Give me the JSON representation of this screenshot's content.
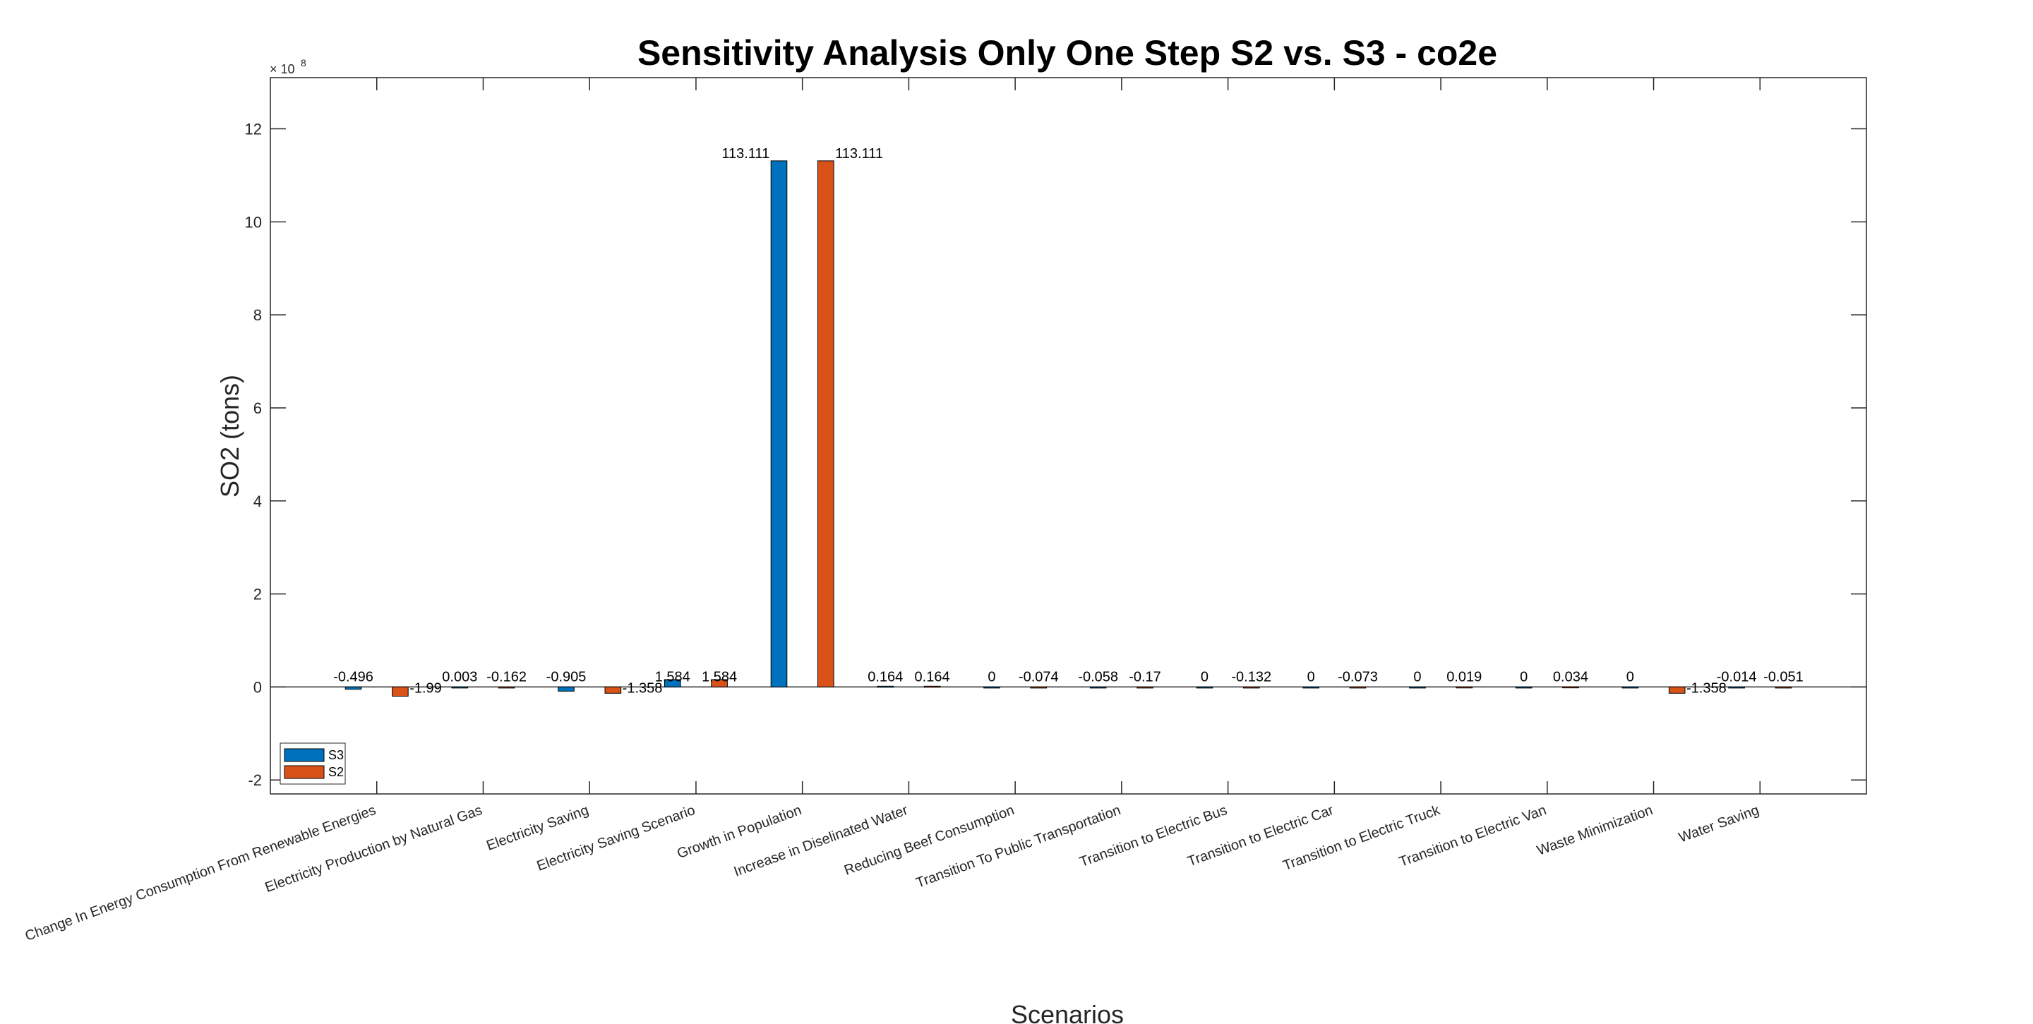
{
  "chart_data": {
    "type": "bar",
    "title": "Sensitivity Analysis Only One Step S2 vs. S3 - co2e",
    "xlabel": "Scenarios",
    "ylabel": "SO2 (tons)",
    "y_exponent_base": "× 10",
    "y_exponent_power": "8",
    "ylim": [
      -2.3,
      13.1
    ],
    "yticks": [
      -2,
      0,
      2,
      4,
      6,
      8,
      10,
      12
    ],
    "legend_position": "bottom-left",
    "grid": false,
    "categories": [
      "Change In Energy Consumption From Renewable Energies",
      "Electricity Production by Natural Gas",
      "Electricity Saving",
      "Electricity Saving Scenario",
      "Growth in Population",
      "Increase in Diselinated Water",
      "Reducing Beef Consumption",
      "Transition To Public Transportation",
      "Transition to Electric Bus",
      "Transition to Electric Car",
      "Transition to Electric Truck",
      "Transition to Electric Van",
      "Waste Minimization",
      "Water Saving"
    ],
    "series": [
      {
        "name": "S3",
        "color": "#0072BD",
        "values": [
          -0.0496,
          0.0003,
          -0.0905,
          0.1584,
          11.3111,
          0.0164,
          0,
          -0.0058,
          0,
          0,
          0,
          0,
          0,
          -0.0014
        ],
        "labels": [
          "-0.496",
          "0.003",
          "-0.905",
          "1.584",
          "113.111",
          "0.164",
          "0",
          "-0.058",
          "0",
          "0",
          "0",
          "0",
          "0",
          "-0.014"
        ]
      },
      {
        "name": "S2",
        "color": "#D95319",
        "values": [
          -0.199,
          -0.0162,
          -0.1358,
          0.1584,
          11.3111,
          0.0164,
          -0.0074,
          -0.017,
          -0.0132,
          -0.0073,
          0.0019,
          0.0034,
          -0.1358,
          -0.0051
        ],
        "labels": [
          "-1.99",
          "-0.162",
          "-1.358",
          "1.584",
          "113.111",
          "0.164",
          "-0.074",
          "-0.17",
          "-0.132",
          "-0.073",
          "0.019",
          "0.034",
          "-1.358",
          "-0.051"
        ]
      }
    ]
  }
}
